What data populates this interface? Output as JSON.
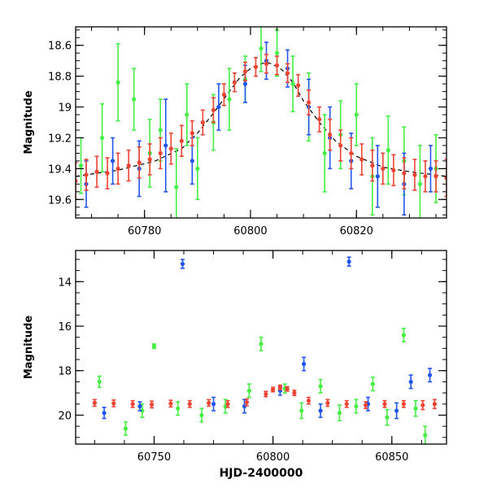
{
  "chart_data": [
    {
      "type": "scatter",
      "title": "",
      "xlabel": "",
      "ylabel": "Magnitude",
      "xlim": [
        60767,
        60837
      ],
      "ylim": [
        19.72,
        18.48
      ],
      "y_inverted": true,
      "grid": false,
      "x_ticks": [
        60780,
        60800,
        60820
      ],
      "y_ticks": [
        18.6,
        18.8,
        19.0,
        19.2,
        19.4,
        19.6
      ],
      "y_tick_labels": [
        "18.6",
        "18.8",
        "19",
        "19.2",
        "19.4",
        "19.6"
      ],
      "model_curve": {
        "style": "dashed",
        "color": "#000000",
        "x": [
          60767,
          60775,
          60782,
          60787,
          60790,
          60793,
          60796,
          60798,
          60800,
          60802,
          60803,
          60804,
          60806,
          60808,
          60810,
          60813,
          60816,
          60820,
          60825,
          60830,
          60837
        ],
        "y": [
          19.45,
          19.41,
          19.35,
          19.27,
          19.17,
          19.04,
          18.9,
          18.81,
          18.75,
          18.72,
          18.71,
          18.72,
          18.76,
          18.84,
          18.96,
          19.1,
          19.22,
          19.32,
          19.39,
          19.42,
          19.45
        ]
      },
      "series": [
        {
          "color": "#44ee44",
          "x": [
            60768,
            60772,
            60775,
            60778,
            60781,
            60783,
            60786,
            60788,
            60790,
            60793,
            60796,
            60799,
            60802,
            60805,
            60808,
            60811,
            60814,
            60817,
            60820,
            60823,
            60826,
            60829,
            60832,
            60835
          ],
          "y": [
            19.38,
            19.2,
            18.84,
            18.95,
            19.3,
            19.15,
            19.52,
            19.05,
            19.4,
            19.1,
            18.95,
            18.82,
            18.62,
            18.65,
            18.85,
            19.0,
            19.3,
            19.18,
            19.05,
            19.45,
            19.28,
            19.35,
            19.5,
            19.4
          ],
          "yerr": [
            0.18,
            0.22,
            0.25,
            0.2,
            0.22,
            0.2,
            0.25,
            0.2,
            0.2,
            0.18,
            0.2,
            0.15,
            0.15,
            0.15,
            0.18,
            0.22,
            0.25,
            0.22,
            0.2,
            0.25,
            0.22,
            0.22,
            0.25,
            0.22
          ]
        },
        {
          "color": "#2255ee",
          "x": [
            60769,
            60774,
            60779,
            60784,
            60789,
            60794,
            60799,
            60803,
            60807,
            60811,
            60815,
            60819,
            60824,
            60829,
            60834
          ],
          "y": [
            19.5,
            19.35,
            19.4,
            19.25,
            19.35,
            19.0,
            18.85,
            18.7,
            18.75,
            19.0,
            19.2,
            19.35,
            19.45,
            19.5,
            19.4
          ],
          "yerr": [
            0.15,
            0.15,
            0.18,
            0.3,
            0.15,
            0.15,
            0.12,
            0.12,
            0.12,
            0.18,
            0.2,
            0.18,
            0.2,
            0.2,
            0.15
          ]
        },
        {
          "color": "#ee4433",
          "x": [
            60767,
            60769,
            60771,
            60773,
            60775,
            60777,
            60779,
            60781,
            60783,
            60785,
            60787,
            60789,
            60791,
            60793,
            60795,
            60797,
            60799,
            60801,
            60803,
            60805,
            60807,
            60809,
            60811,
            60813,
            60815,
            60817,
            60819,
            60821,
            60823,
            60825,
            60827,
            60829,
            60831,
            60833,
            60835,
            60837
          ],
          "y": [
            19.48,
            19.44,
            19.42,
            19.43,
            19.4,
            19.38,
            19.36,
            19.34,
            19.3,
            19.27,
            19.22,
            19.17,
            19.1,
            19.02,
            18.92,
            18.84,
            18.77,
            18.74,
            18.72,
            18.73,
            18.78,
            18.86,
            18.97,
            19.08,
            19.18,
            19.25,
            19.3,
            19.34,
            19.38,
            19.4,
            19.41,
            19.43,
            19.44,
            19.45,
            19.45,
            19.46
          ],
          "yerr": [
            0.12,
            0.1,
            0.1,
            0.1,
            0.1,
            0.1,
            0.1,
            0.1,
            0.1,
            0.1,
            0.1,
            0.08,
            0.08,
            0.08,
            0.07,
            0.06,
            0.06,
            0.06,
            0.06,
            0.06,
            0.06,
            0.07,
            0.08,
            0.08,
            0.1,
            0.1,
            0.1,
            0.1,
            0.1,
            0.1,
            0.1,
            0.1,
            0.1,
            0.1,
            0.1,
            0.12
          ]
        }
      ]
    },
    {
      "type": "scatter",
      "title": "",
      "xlabel": "HJD-2400000",
      "ylabel": "Magnitude",
      "xlim": [
        60717,
        60873
      ],
      "ylim": [
        21.3,
        12.6
      ],
      "y_inverted": true,
      "grid": false,
      "x_ticks": [
        60750,
        60800,
        60850
      ],
      "y_ticks": [
        14,
        16,
        18,
        20
      ],
      "y_tick_labels": [
        "14",
        "16",
        "18",
        "20"
      ],
      "series": [
        {
          "color": "#44ee44",
          "x": [
            60727,
            60738,
            60745,
            60750,
            60760,
            60770,
            60780,
            60790,
            60795,
            60805,
            60812,
            60820,
            60828,
            60835,
            60842,
            60848,
            60855,
            60860,
            60864
          ],
          "y": [
            18.5,
            20.6,
            19.8,
            16.9,
            19.7,
            20.0,
            19.6,
            18.9,
            16.8,
            18.8,
            19.8,
            18.7,
            19.9,
            19.6,
            18.6,
            20.1,
            16.4,
            19.7,
            20.9
          ],
          "yerr": [
            0.25,
            0.3,
            0.3,
            0.1,
            0.3,
            0.3,
            0.3,
            0.3,
            0.3,
            0.2,
            0.35,
            0.3,
            0.35,
            0.3,
            0.3,
            0.35,
            0.3,
            0.35,
            0.4
          ]
        },
        {
          "color": "#2255ee",
          "x": [
            60729,
            60744,
            60762,
            60775,
            60788,
            60803,
            60813,
            60820,
            60832,
            60840,
            60852,
            60858,
            60866
          ],
          "y": [
            19.9,
            19.6,
            13.2,
            19.5,
            19.6,
            18.9,
            17.7,
            19.8,
            13.1,
            19.5,
            19.8,
            18.5,
            18.2
          ],
          "yerr": [
            0.25,
            0.2,
            0.2,
            0.3,
            0.3,
            0.2,
            0.3,
            0.3,
            0.2,
            0.3,
            0.35,
            0.3,
            0.3
          ]
        },
        {
          "color": "#ee4433",
          "x": [
            60725,
            60733,
            60741,
            60749,
            60757,
            60765,
            60773,
            60781,
            60789,
            60797,
            60800,
            60803,
            60806,
            60809,
            60815,
            60823,
            60831,
            60839,
            60847,
            60855,
            60863,
            60868
          ],
          "y": [
            19.45,
            19.47,
            19.5,
            19.52,
            19.48,
            19.5,
            19.45,
            19.5,
            19.42,
            19.05,
            18.85,
            18.75,
            18.82,
            19.0,
            19.35,
            19.45,
            19.5,
            19.55,
            19.5,
            19.5,
            19.55,
            19.5
          ],
          "yerr": [
            0.15,
            0.15,
            0.15,
            0.15,
            0.15,
            0.15,
            0.15,
            0.15,
            0.15,
            0.12,
            0.1,
            0.1,
            0.1,
            0.12,
            0.15,
            0.15,
            0.15,
            0.15,
            0.15,
            0.15,
            0.2,
            0.2
          ]
        }
      ]
    }
  ]
}
